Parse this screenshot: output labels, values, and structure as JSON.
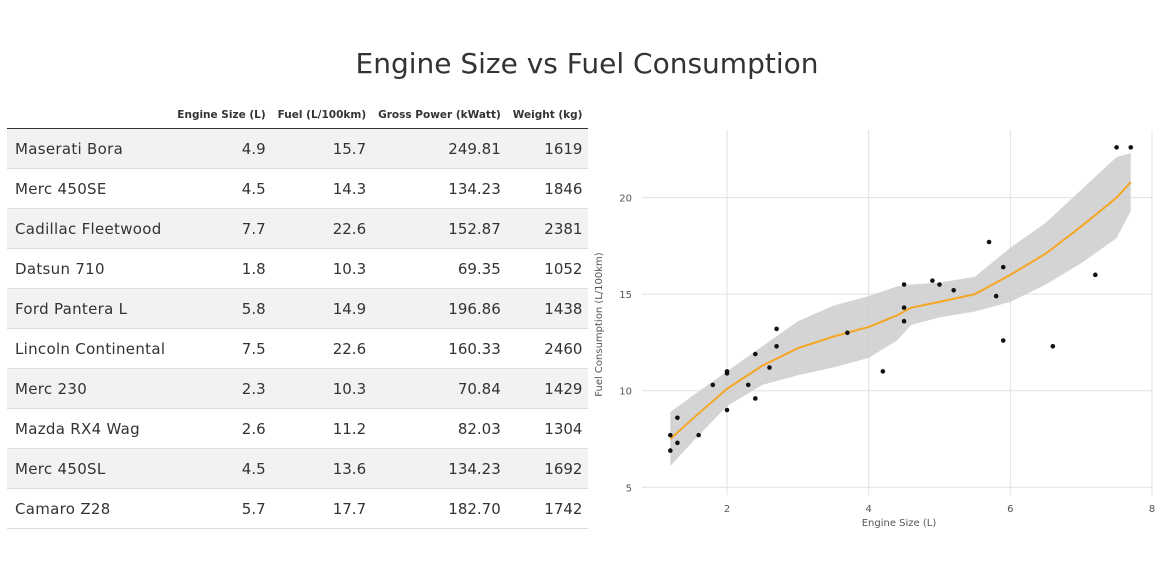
{
  "title": "Engine Size vs Fuel Consumption",
  "table": {
    "columns": [
      "Engine Size (L)",
      "Fuel (L/100km)",
      "Gross Power (kWatt)",
      "Weight (kg)"
    ],
    "rows": [
      {
        "name": "Maserati Bora",
        "engine": "4.9",
        "fuel": "15.7",
        "power": "249.81",
        "weight": "1619"
      },
      {
        "name": "Merc 450SE",
        "engine": "4.5",
        "fuel": "14.3",
        "power": "134.23",
        "weight": "1846"
      },
      {
        "name": "Cadillac Fleetwood",
        "engine": "7.7",
        "fuel": "22.6",
        "power": "152.87",
        "weight": "2381"
      },
      {
        "name": "Datsun 710",
        "engine": "1.8",
        "fuel": "10.3",
        "power": "69.35",
        "weight": "1052"
      },
      {
        "name": "Ford Pantera L",
        "engine": "5.8",
        "fuel": "14.9",
        "power": "196.86",
        "weight": "1438"
      },
      {
        "name": "Lincoln Continental",
        "engine": "7.5",
        "fuel": "22.6",
        "power": "160.33",
        "weight": "2460"
      },
      {
        "name": "Merc 230",
        "engine": "2.3",
        "fuel": "10.3",
        "power": "70.84",
        "weight": "1429"
      },
      {
        "name": "Mazda RX4 Wag",
        "engine": "2.6",
        "fuel": "11.2",
        "power": "82.03",
        "weight": "1304"
      },
      {
        "name": "Merc 450SL",
        "engine": "4.5",
        "fuel": "13.6",
        "power": "134.23",
        "weight": "1692"
      },
      {
        "name": "Camaro Z28",
        "engine": "5.7",
        "fuel": "17.7",
        "power": "182.70",
        "weight": "1742"
      }
    ]
  },
  "chart_data": {
    "type": "scatter",
    "title": "",
    "xlabel": "Engine Size (L)",
    "ylabel": "Fuel Consumption (L/100km)",
    "xlim": [
      0.8,
      8.0
    ],
    "ylim": [
      4.6,
      23.5
    ],
    "xticks": [
      2,
      4,
      6,
      8
    ],
    "yticks": [
      5,
      10,
      15,
      20
    ],
    "grid": true,
    "points": [
      {
        "x": 1.2,
        "y": 7.7
      },
      {
        "x": 1.2,
        "y": 6.9
      },
      {
        "x": 1.3,
        "y": 8.6
      },
      {
        "x": 1.3,
        "y": 7.3
      },
      {
        "x": 1.6,
        "y": 7.7
      },
      {
        "x": 1.8,
        "y": 10.3
      },
      {
        "x": 2.0,
        "y": 11.0
      },
      {
        "x": 2.0,
        "y": 10.9
      },
      {
        "x": 2.0,
        "y": 9.0
      },
      {
        "x": 2.3,
        "y": 10.3
      },
      {
        "x": 2.4,
        "y": 11.9
      },
      {
        "x": 2.4,
        "y": 9.6
      },
      {
        "x": 2.6,
        "y": 11.2
      },
      {
        "x": 2.7,
        "y": 13.2
      },
      {
        "x": 2.7,
        "y": 12.3
      },
      {
        "x": 3.7,
        "y": 13.0
      },
      {
        "x": 4.2,
        "y": 11.0
      },
      {
        "x": 4.5,
        "y": 15.5
      },
      {
        "x": 4.5,
        "y": 14.3
      },
      {
        "x": 4.5,
        "y": 13.6
      },
      {
        "x": 4.9,
        "y": 15.7
      },
      {
        "x": 5.0,
        "y": 15.5
      },
      {
        "x": 5.2,
        "y": 15.2
      },
      {
        "x": 5.7,
        "y": 17.7
      },
      {
        "x": 5.8,
        "y": 14.9
      },
      {
        "x": 5.9,
        "y": 16.4
      },
      {
        "x": 5.9,
        "y": 12.6
      },
      {
        "x": 6.6,
        "y": 12.3
      },
      {
        "x": 7.2,
        "y": 16.0
      },
      {
        "x": 7.5,
        "y": 22.6
      },
      {
        "x": 7.7,
        "y": 22.6
      }
    ],
    "smooth": {
      "x": [
        1.2,
        1.5,
        2.0,
        2.5,
        3.0,
        3.5,
        4.0,
        4.4,
        4.6,
        5.0,
        5.5,
        6.0,
        6.5,
        7.0,
        7.5,
        7.7
      ],
      "y": [
        7.5,
        8.5,
        10.1,
        11.3,
        12.2,
        12.8,
        13.3,
        13.9,
        14.3,
        14.6,
        15.0,
        16.0,
        17.1,
        18.5,
        20.0,
        20.8
      ],
      "lower": [
        6.1,
        7.3,
        9.2,
        10.3,
        10.8,
        11.2,
        11.7,
        12.6,
        13.4,
        13.8,
        14.1,
        14.6,
        15.5,
        16.6,
        17.9,
        19.3
      ],
      "upper": [
        8.9,
        9.7,
        11.0,
        12.3,
        13.6,
        14.4,
        14.9,
        15.4,
        15.5,
        15.6,
        15.9,
        17.4,
        18.7,
        20.4,
        22.1,
        22.3
      ]
    },
    "colors": {
      "line": "#f5a623",
      "band": "#cccccc",
      "point": "#111111",
      "grid": "#e0e0e0"
    }
  }
}
